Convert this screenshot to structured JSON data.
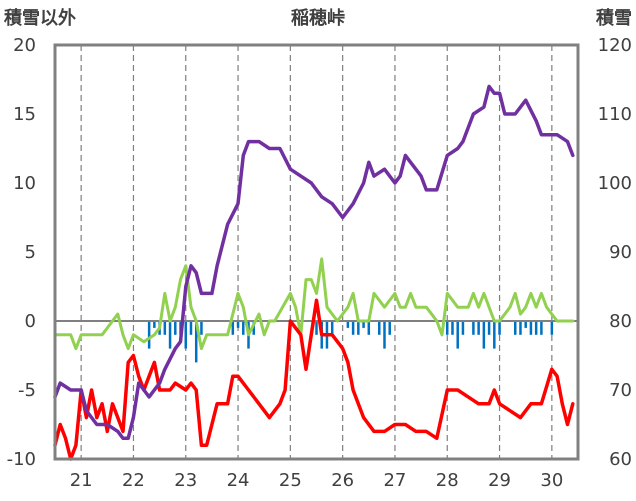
{
  "chart_data": {
    "type": "line",
    "title": "稲穂峠",
    "left_axis_label": "積雪以外",
    "right_axis_label": "積雪",
    "ylim_left": [
      -10,
      20
    ],
    "ylim_right": [
      60,
      120
    ],
    "y_ticks_left": [
      "20",
      "15",
      "10",
      "5",
      "0",
      "-5",
      "-10"
    ],
    "y_ticks_right": [
      "120",
      "110",
      "100",
      "90",
      "80",
      "70",
      "60"
    ],
    "x_range": [
      20.5,
      30.5
    ],
    "x_ticks": [
      "21",
      "22",
      "23",
      "24",
      "25",
      "26",
      "27",
      "28",
      "29",
      "30"
    ],
    "grid": "dashed-vertical-at-day-boundaries",
    "series": [
      {
        "key": "snow_depth",
        "axis": "right",
        "color": "#7030A0",
        "points": [
          [
            20.5,
            69
          ],
          [
            20.6,
            71
          ],
          [
            20.8,
            70
          ],
          [
            21.0,
            70
          ],
          [
            21.1,
            67
          ],
          [
            21.3,
            65
          ],
          [
            21.5,
            65
          ],
          [
            21.7,
            64
          ],
          [
            21.8,
            63
          ],
          [
            21.9,
            63
          ],
          [
            22.0,
            66
          ],
          [
            22.1,
            71
          ],
          [
            22.2,
            70
          ],
          [
            22.3,
            69
          ],
          [
            22.5,
            71
          ],
          [
            22.6,
            73
          ],
          [
            22.8,
            76
          ],
          [
            22.9,
            77
          ],
          [
            23.0,
            85
          ],
          [
            23.1,
            88
          ],
          [
            23.2,
            87
          ],
          [
            23.3,
            84
          ],
          [
            23.5,
            84
          ],
          [
            23.6,
            88
          ],
          [
            23.8,
            94
          ],
          [
            24.0,
            97
          ],
          [
            24.1,
            104
          ],
          [
            24.2,
            106
          ],
          [
            24.4,
            106
          ],
          [
            24.6,
            105
          ],
          [
            24.8,
            105
          ],
          [
            25.0,
            102
          ],
          [
            25.2,
            101
          ],
          [
            25.4,
            100
          ],
          [
            25.6,
            98
          ],
          [
            25.8,
            97
          ],
          [
            26.0,
            95
          ],
          [
            26.2,
            97
          ],
          [
            26.4,
            100
          ],
          [
            26.5,
            103
          ],
          [
            26.6,
            101
          ],
          [
            26.8,
            102
          ],
          [
            27.0,
            100
          ],
          [
            27.1,
            101
          ],
          [
            27.2,
            104
          ],
          [
            27.3,
            103
          ],
          [
            27.5,
            101
          ],
          [
            27.6,
            99
          ],
          [
            27.8,
            99
          ],
          [
            28.0,
            104
          ],
          [
            28.2,
            105
          ],
          [
            28.3,
            106
          ],
          [
            28.5,
            110
          ],
          [
            28.7,
            111
          ],
          [
            28.8,
            114
          ],
          [
            28.9,
            113
          ],
          [
            29.0,
            113
          ],
          [
            29.1,
            110
          ],
          [
            29.2,
            110
          ],
          [
            29.3,
            110
          ],
          [
            29.5,
            112
          ],
          [
            29.7,
            109
          ],
          [
            29.8,
            107
          ],
          [
            29.9,
            107
          ],
          [
            30.1,
            107
          ],
          [
            30.3,
            106
          ],
          [
            30.4,
            104
          ]
        ]
      },
      {
        "key": "temperature",
        "axis": "left",
        "color": "#FF0000",
        "points": [
          [
            20.5,
            -9.0
          ],
          [
            20.6,
            -7.5
          ],
          [
            20.7,
            -8.5
          ],
          [
            20.8,
            -10.0
          ],
          [
            20.9,
            -9.0
          ],
          [
            21.0,
            -5.0
          ],
          [
            21.1,
            -7.0
          ],
          [
            21.2,
            -5.0
          ],
          [
            21.3,
            -7.0
          ],
          [
            21.4,
            -6.0
          ],
          [
            21.5,
            -8.0
          ],
          [
            21.6,
            -6.0
          ],
          [
            21.8,
            -8.0
          ],
          [
            21.9,
            -3.0
          ],
          [
            22.0,
            -2.5
          ],
          [
            22.1,
            -4.0
          ],
          [
            22.2,
            -5.0
          ],
          [
            22.3,
            -4.0
          ],
          [
            22.4,
            -3.0
          ],
          [
            22.5,
            -5.0
          ],
          [
            22.7,
            -5.0
          ],
          [
            22.8,
            -4.5
          ],
          [
            23.0,
            -5.0
          ],
          [
            23.1,
            -4.5
          ],
          [
            23.2,
            -5.0
          ],
          [
            23.3,
            -9.0
          ],
          [
            23.4,
            -9.0
          ],
          [
            23.6,
            -6.0
          ],
          [
            23.8,
            -6.0
          ],
          [
            23.9,
            -4.0
          ],
          [
            24.0,
            -4.0
          ],
          [
            24.2,
            -5.0
          ],
          [
            24.4,
            -6.0
          ],
          [
            24.6,
            -7.0
          ],
          [
            24.8,
            -6.0
          ],
          [
            24.9,
            -5.0
          ],
          [
            25.0,
            0.0
          ],
          [
            25.1,
            -0.5
          ],
          [
            25.2,
            -1.0
          ],
          [
            25.3,
            -3.5
          ],
          [
            25.5,
            1.5
          ],
          [
            25.6,
            -1.0
          ],
          [
            25.8,
            -1.0
          ],
          [
            26.0,
            -2.0
          ],
          [
            26.1,
            -3.0
          ],
          [
            26.2,
            -5.0
          ],
          [
            26.4,
            -7.0
          ],
          [
            26.6,
            -8.0
          ],
          [
            26.8,
            -8.0
          ],
          [
            27.0,
            -7.5
          ],
          [
            27.2,
            -7.5
          ],
          [
            27.4,
            -8.0
          ],
          [
            27.6,
            -8.0
          ],
          [
            27.8,
            -8.5
          ],
          [
            28.0,
            -5.0
          ],
          [
            28.1,
            -5.0
          ],
          [
            28.2,
            -5.0
          ],
          [
            28.4,
            -5.5
          ],
          [
            28.6,
            -6.0
          ],
          [
            28.8,
            -6.0
          ],
          [
            28.9,
            -5.0
          ],
          [
            29.0,
            -6.0
          ],
          [
            29.2,
            -6.5
          ],
          [
            29.4,
            -7.0
          ],
          [
            29.6,
            -6.0
          ],
          [
            29.8,
            -6.0
          ],
          [
            30.0,
            -3.5
          ],
          [
            30.1,
            -4.0
          ],
          [
            30.2,
            -6.0
          ],
          [
            30.3,
            -7.5
          ],
          [
            30.4,
            -6.0
          ]
        ]
      },
      {
        "key": "wind",
        "axis": "left",
        "color": "#92D050",
        "points": [
          [
            20.5,
            -1.0
          ],
          [
            20.8,
            -1.0
          ],
          [
            20.9,
            -2.0
          ],
          [
            21.0,
            -1.0
          ],
          [
            21.4,
            -1.0
          ],
          [
            21.6,
            0.0
          ],
          [
            21.7,
            0.5
          ],
          [
            21.8,
            -1.0
          ],
          [
            21.9,
            -2.0
          ],
          [
            22.0,
            -1.0
          ],
          [
            22.2,
            -1.5
          ],
          [
            22.4,
            -1.0
          ],
          [
            22.5,
            -0.5
          ],
          [
            22.6,
            2.0
          ],
          [
            22.7,
            0.0
          ],
          [
            22.8,
            1.0
          ],
          [
            22.9,
            3.0
          ],
          [
            23.0,
            4.0
          ],
          [
            23.1,
            1.0
          ],
          [
            23.2,
            0.0
          ],
          [
            23.3,
            -2.0
          ],
          [
            23.4,
            -1.0
          ],
          [
            23.8,
            -1.0
          ],
          [
            23.9,
            0.5
          ],
          [
            24.0,
            2.0
          ],
          [
            24.1,
            1.0
          ],
          [
            24.2,
            -1.0
          ],
          [
            24.4,
            0.5
          ],
          [
            24.5,
            -1.0
          ],
          [
            24.6,
            0.0
          ],
          [
            24.7,
            0.0
          ],
          [
            25.0,
            2.0
          ],
          [
            25.1,
            1.0
          ],
          [
            25.2,
            -1.0
          ],
          [
            25.3,
            3.0
          ],
          [
            25.4,
            3.0
          ],
          [
            25.5,
            2.0
          ],
          [
            25.6,
            4.5
          ],
          [
            25.7,
            1.0
          ],
          [
            25.8,
            0.5
          ],
          [
            25.9,
            0.0
          ],
          [
            26.1,
            1.0
          ],
          [
            26.2,
            2.0
          ],
          [
            26.3,
            0.0
          ],
          [
            26.4,
            0.0
          ],
          [
            26.5,
            0.0
          ],
          [
            26.6,
            2.0
          ],
          [
            26.8,
            1.0
          ],
          [
            27.0,
            2.0
          ],
          [
            27.1,
            1.0
          ],
          [
            27.2,
            1.0
          ],
          [
            27.3,
            2.0
          ],
          [
            27.4,
            1.0
          ],
          [
            27.6,
            1.0
          ],
          [
            27.7,
            0.5
          ],
          [
            27.8,
            0.0
          ],
          [
            27.9,
            -1.0
          ],
          [
            28.0,
            2.0
          ],
          [
            28.2,
            1.0
          ],
          [
            28.4,
            1.0
          ],
          [
            28.5,
            2.0
          ],
          [
            28.6,
            1.0
          ],
          [
            28.7,
            2.0
          ],
          [
            28.8,
            1.0
          ],
          [
            28.9,
            0.0
          ],
          [
            29.0,
            0.0
          ],
          [
            29.2,
            1.0
          ],
          [
            29.3,
            2.0
          ],
          [
            29.4,
            0.5
          ],
          [
            29.5,
            1.0
          ],
          [
            29.6,
            2.0
          ],
          [
            29.7,
            1.0
          ],
          [
            29.8,
            2.0
          ],
          [
            29.9,
            1.0
          ],
          [
            30.0,
            0.5
          ],
          [
            30.1,
            0.0
          ],
          [
            30.4,
            0.0
          ]
        ]
      }
    ],
    "bar_series": {
      "key": "precip",
      "axis": "left",
      "color": "#0070C0",
      "bars": [
        [
          22.3,
          -2.0
        ],
        [
          22.4,
          -0.5
        ],
        [
          22.5,
          -1.0
        ],
        [
          22.6,
          -1.0
        ],
        [
          22.7,
          -2.0
        ],
        [
          22.8,
          -1.0
        ],
        [
          22.9,
          -1.0
        ],
        [
          23.0,
          -2.0
        ],
        [
          23.1,
          -1.0
        ],
        [
          23.2,
          -3.0
        ],
        [
          23.3,
          -1.0
        ],
        [
          23.9,
          -1.0
        ],
        [
          24.0,
          -0.5
        ],
        [
          24.1,
          -1.0
        ],
        [
          24.2,
          -2.0
        ],
        [
          24.3,
          -1.0
        ],
        [
          25.5,
          -1.0
        ],
        [
          25.6,
          -2.0
        ],
        [
          25.7,
          -2.0
        ],
        [
          25.8,
          -1.0
        ],
        [
          26.1,
          -0.5
        ],
        [
          26.2,
          -1.0
        ],
        [
          26.3,
          -1.0
        ],
        [
          26.4,
          -0.5
        ],
        [
          26.5,
          -1.0
        ],
        [
          26.7,
          -1.0
        ],
        [
          26.8,
          -2.0
        ],
        [
          26.9,
          -1.0
        ],
        [
          28.0,
          -1.0
        ],
        [
          28.1,
          -1.0
        ],
        [
          28.2,
          -2.0
        ],
        [
          28.3,
          -1.0
        ],
        [
          28.5,
          -1.0
        ],
        [
          28.6,
          -1.0
        ],
        [
          28.7,
          -2.0
        ],
        [
          28.8,
          -1.0
        ],
        [
          28.9,
          -2.0
        ],
        [
          29.0,
          -1.0
        ],
        [
          29.3,
          -1.0
        ],
        [
          29.4,
          -1.0
        ],
        [
          29.5,
          -0.5
        ],
        [
          29.6,
          -1.0
        ],
        [
          29.7,
          -1.0
        ],
        [
          29.8,
          -1.0
        ],
        [
          30.0,
          -1.0
        ]
      ]
    }
  },
  "colors": {
    "frame": "#808080",
    "zero_line": "#808080",
    "grid": "#7f7f7f",
    "text": "#404040"
  }
}
